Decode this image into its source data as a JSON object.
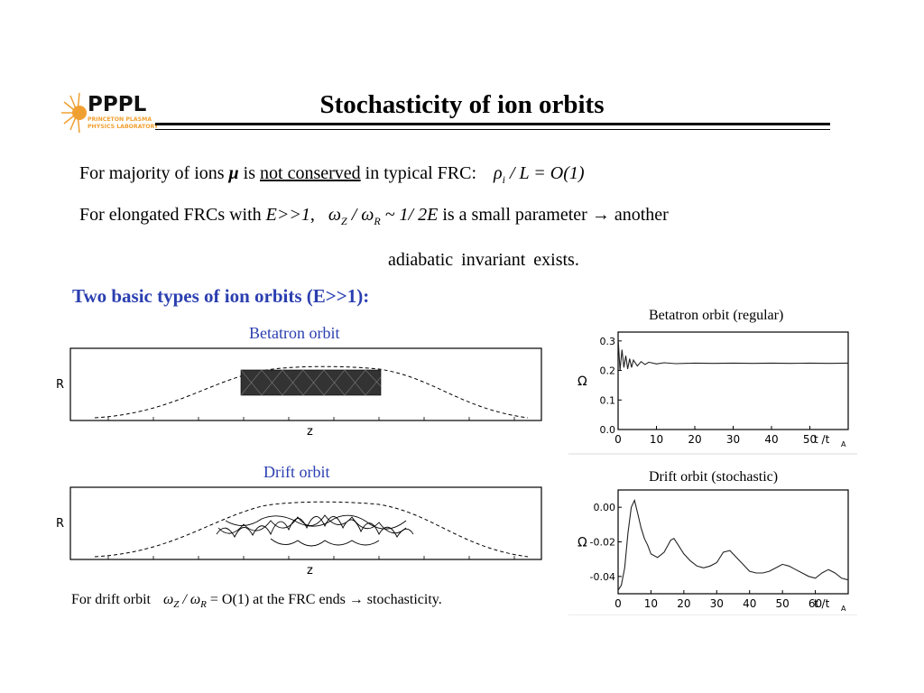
{
  "logo": {
    "name": "PPPL",
    "line1": "PRINCETON PLASMA",
    "line2": "PHYSICS LABORATORY",
    "icon": "sun-burst-icon",
    "color": "#f0a030"
  },
  "slide": {
    "title": "Stochasticity of ion orbits"
  },
  "text": {
    "l1_a": "For majority of ions ",
    "l1_mu": "μ",
    "l1_b": " is ",
    "l1_c": "not conserved",
    "l1_d": " in typical FRC:",
    "l1_eq_rho": "ρ",
    "l1_eq_i": "i",
    "l1_eq_rest": " / L = O(1)",
    "l2_a": "For elongated FRCs with ",
    "l2_E": "E>>1",
    "l2_comma": ",",
    "l2_eq": "ω",
    "l2_eq_z": "Z",
    "l2_eq_mid": " / ω",
    "l2_eq_r": "R",
    "l2_eq_rest": " ~ 1/ 2E",
    "l2_b": "  is  a  small parameter → another",
    "l3": "adiabatic  invariant  exists."
  },
  "section": {
    "heading": "Two basic types of ion orbits (E>>1):"
  },
  "panels": {
    "betatron_label": "Betatron orbit",
    "drift_label": "Drift orbit",
    "axis_R": "R",
    "axis_z": "z"
  },
  "chart_data": [
    {
      "type": "line",
      "title": "Betatron orbit (regular)",
      "ylabel": "Ω",
      "xlabel": "t / tA",
      "xlabel_main": "t /t",
      "xlabel_sub": "A",
      "xticks": [
        "0",
        "10",
        "20",
        "30",
        "40",
        "50"
      ],
      "yticks": [
        "0.0",
        "0.1",
        "0.2",
        "0.3"
      ],
      "xlim": [
        0,
        60
      ],
      "ylim": [
        0,
        0.33
      ],
      "series": [
        {
          "x": [
            0,
            0.5,
            1,
            1.5,
            2,
            2.5,
            3,
            3.5,
            4,
            5,
            6,
            7,
            8,
            10,
            12,
            15,
            20,
            25,
            30,
            35,
            40,
            45,
            50,
            55,
            60
          ],
          "values": [
            0.31,
            0.2,
            0.27,
            0.21,
            0.25,
            0.205,
            0.24,
            0.21,
            0.235,
            0.215,
            0.23,
            0.22,
            0.228,
            0.222,
            0.226,
            0.223,
            0.225,
            0.224,
            0.225,
            0.224,
            0.225,
            0.224,
            0.225,
            0.224,
            0.225
          ]
        }
      ]
    },
    {
      "type": "line",
      "title": "Drift orbit (stochastic)",
      "ylabel": "Ω",
      "xlabel": "t / tA",
      "xlabel_main": "t /t",
      "xlabel_sub": "A",
      "xticks": [
        "0",
        "10",
        "20",
        "30",
        "40",
        "50",
        "60"
      ],
      "yticks": [
        "0.00",
        "-0.02",
        "-0.04"
      ],
      "xlim": [
        0,
        70
      ],
      "ylim": [
        -0.05,
        0.01
      ],
      "series": [
        {
          "x": [
            0,
            1,
            2,
            3,
            4,
            5,
            6,
            7,
            8,
            9,
            10,
            12,
            14,
            16,
            17,
            18,
            20,
            22,
            24,
            26,
            28,
            30,
            32,
            34,
            36,
            38,
            40,
            42,
            44,
            46,
            48,
            50,
            52,
            54,
            56,
            58,
            60,
            62,
            64,
            66,
            68,
            70
          ],
          "values": [
            -0.048,
            -0.045,
            -0.035,
            -0.015,
            0.0,
            0.004,
            -0.004,
            -0.012,
            -0.018,
            -0.022,
            -0.027,
            -0.029,
            -0.026,
            -0.019,
            -0.018,
            -0.021,
            -0.027,
            -0.031,
            -0.034,
            -0.035,
            -0.034,
            -0.032,
            -0.026,
            -0.025,
            -0.029,
            -0.033,
            -0.037,
            -0.038,
            -0.038,
            -0.037,
            -0.035,
            -0.033,
            -0.034,
            -0.036,
            -0.038,
            -0.04,
            -0.041,
            -0.038,
            -0.036,
            -0.038,
            -0.041,
            -0.042
          ]
        }
      ]
    }
  ],
  "note": {
    "a": "For drift orbit ",
    "eq_w": "ω",
    "eq_z": "Z",
    "eq_mid": " / ω",
    "eq_r": "R",
    "eq_rest": " = O(1)",
    "b": "  at the FRC ends → stochasticity."
  }
}
